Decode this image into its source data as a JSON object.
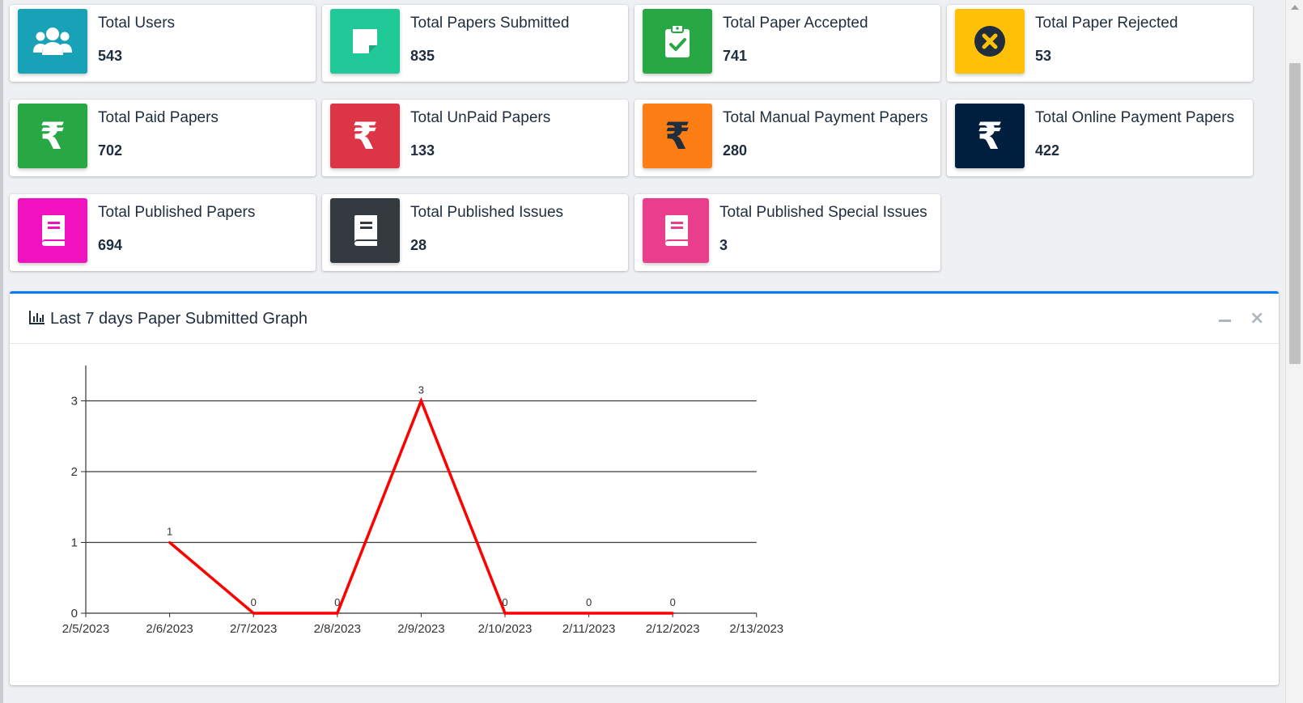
{
  "cards": [
    {
      "label": "Total Users",
      "value": "543",
      "color": "#17a2b8",
      "icon": "users-icon"
    },
    {
      "label": "Total Papers Submitted",
      "value": "835",
      "color": "#20c997",
      "icon": "sticky-note-icon"
    },
    {
      "label": "Total Paper Accepted",
      "value": "741",
      "color": "#28a745",
      "icon": "clipboard-check-icon"
    },
    {
      "label": "Total Paper Rejected",
      "value": "53",
      "color": "#ffc107",
      "icon": "times-circle-icon"
    },
    {
      "label": "Total Paid Papers",
      "value": "702",
      "color": "#28a745",
      "icon": "rupee-icon"
    },
    {
      "label": "Total UnPaid Papers",
      "value": "133",
      "color": "#dc3545",
      "icon": "rupee-icon"
    },
    {
      "label": "Total Manual Payment Papers",
      "value": "280",
      "color": "#fd7e14",
      "icon": "rupee-icon"
    },
    {
      "label": "Total Online Payment Papers",
      "value": "422",
      "color": "#001f3f",
      "icon": "rupee-icon"
    },
    {
      "label": "Total Published Papers",
      "value": "694",
      "color": "#f012be",
      "icon": "book-icon"
    },
    {
      "label": "Total Published Issues",
      "value": "28",
      "color": "#343a40",
      "icon": "book-icon"
    },
    {
      "label": "Total Published Special Issues",
      "value": "3",
      "color": "#e83e8c",
      "icon": "book-icon"
    }
  ],
  "panel": {
    "title": "Last 7 days Paper Submitted Graph",
    "title_icon": "bar-chart-icon",
    "accent": "#007bff"
  },
  "rupee_symbol": "₹",
  "chart_data": {
    "type": "line",
    "title": "",
    "xlabel": "",
    "ylabel": "",
    "x_ticks": [
      "2/5/2023",
      "2/6/2023",
      "2/7/2023",
      "2/8/2023",
      "2/9/2023",
      "2/10/2023",
      "2/11/2023",
      "2/12/2023",
      "2/13/2023"
    ],
    "y_ticks": [
      0,
      1,
      2,
      3
    ],
    "ylim": [
      0,
      3.5
    ],
    "series": [
      {
        "color": "#ff0000",
        "x": [
          "2/6/2023",
          "2/7/2023",
          "2/8/2023",
          "2/9/2023",
          "2/10/2023",
          "2/11/2023",
          "2/12/2023"
        ],
        "values": [
          1,
          0,
          0,
          3,
          0,
          0,
          0
        ]
      }
    ],
    "grid": true,
    "legend": "none"
  }
}
